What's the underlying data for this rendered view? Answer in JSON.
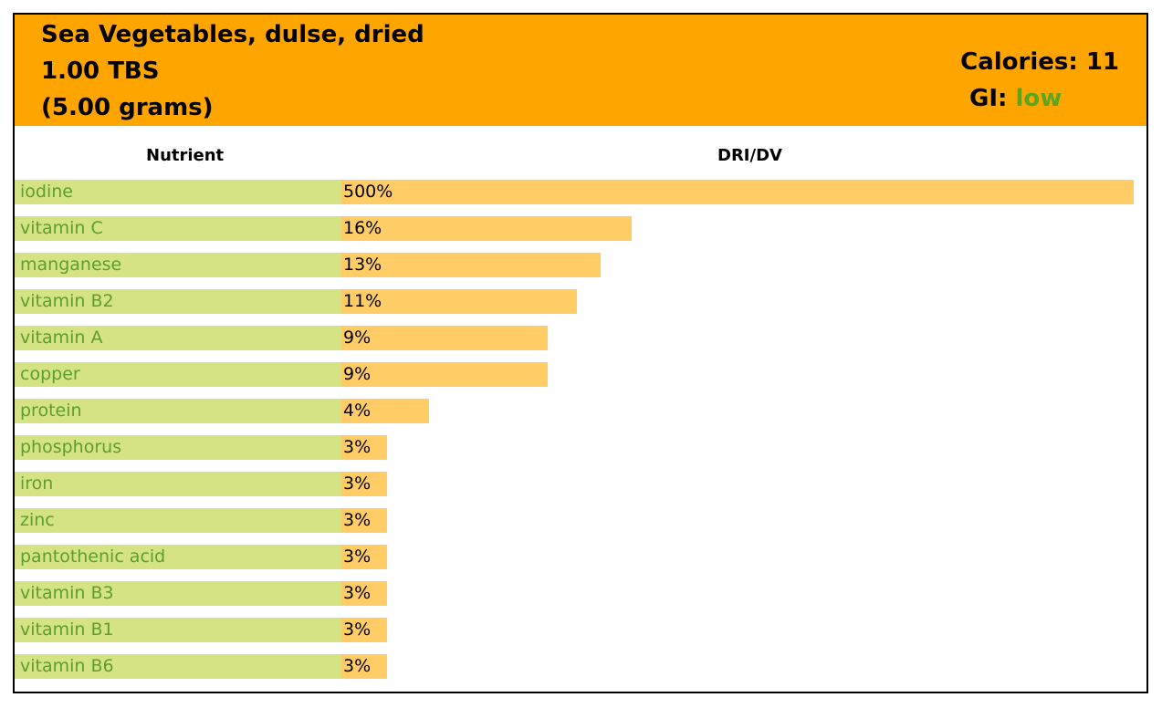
{
  "header": {
    "food_name": "Sea Vegetables, dulse, dried",
    "serving": "1.00 TBS",
    "grams": "(5.00 grams)",
    "calories": "Calories: 11",
    "gi_label": "GI:",
    "gi_value": "low"
  },
  "colors": {
    "header_bg": "#ffa500",
    "name_cell": "#d5e384",
    "name_text": "#5e9e2a",
    "bar": "#ffcc66",
    "gi_low": "#5aa61e"
  },
  "chart_data": {
    "type": "bar",
    "orientation": "horizontal",
    "columns": [
      "Nutrient",
      "DRI/DV"
    ],
    "scale": "log",
    "categories": [
      "iodine",
      "vitamin C",
      "manganese",
      "vitamin B2",
      "vitamin A",
      "copper",
      "protein",
      "phosphorus",
      "iron",
      "zinc",
      "pantothenic acid",
      "vitamin B3",
      "vitamin B1",
      "vitamin B6"
    ],
    "values": [
      500,
      16,
      13,
      11,
      9,
      9,
      4,
      3,
      3,
      3,
      3,
      3,
      3,
      3
    ],
    "labels": [
      "500%",
      "16%",
      "13%",
      "11%",
      "9%",
      "9%",
      "4%",
      "3%",
      "3%",
      "3%",
      "3%",
      "3%",
      "3%",
      "3%"
    ]
  }
}
